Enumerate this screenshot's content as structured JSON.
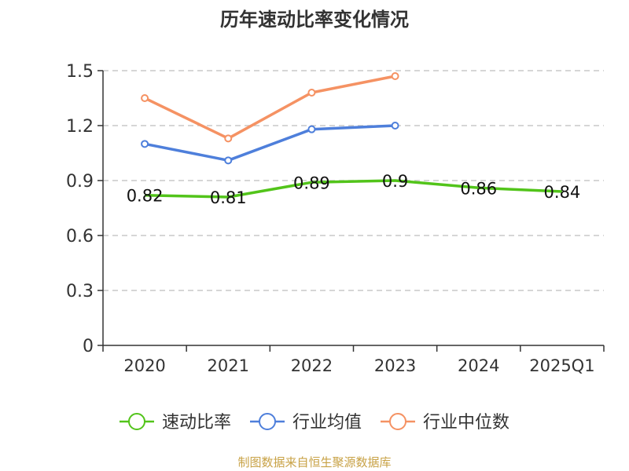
{
  "chart_data": {
    "type": "line",
    "title": "历年速动比率变化情况",
    "categories": [
      "2020",
      "2021",
      "2022",
      "2023",
      "2024",
      "2025Q1"
    ],
    "ylim": [
      0,
      1.5
    ],
    "yticks": [
      0,
      0.3,
      0.6,
      0.9,
      1.2,
      1.5
    ],
    "ytick_labels": [
      "0",
      "0.3",
      "0.6",
      "0.9",
      "1.2",
      "1.5"
    ],
    "grid": true,
    "legend_position": "bottom",
    "series": [
      {
        "name": "速动比率",
        "color": "#52c41a",
        "values": [
          0.82,
          0.81,
          0.89,
          0.9,
          0.86,
          0.84
        ],
        "labels": [
          "0.82",
          "0.81",
          "0.89",
          "0.9",
          "0.86",
          "0.84"
        ],
        "show_markers": false,
        "show_labels": true
      },
      {
        "name": "行业均值",
        "color": "#4e7fdb",
        "values": [
          1.1,
          1.01,
          1.18,
          1.2,
          null,
          null
        ],
        "show_markers": true,
        "show_labels": false
      },
      {
        "name": "行业中位数",
        "color": "#f59263",
        "values": [
          1.35,
          1.13,
          1.38,
          1.47,
          null,
          null
        ],
        "show_markers": true,
        "show_labels": false
      }
    ],
    "source": "制图数据来自恒生聚源数据库"
  }
}
